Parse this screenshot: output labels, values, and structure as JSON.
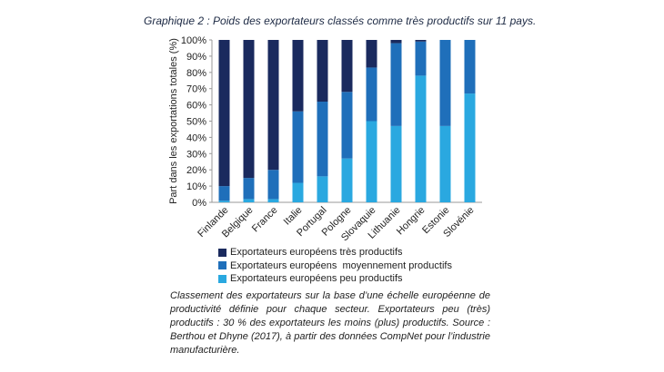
{
  "title": "Graphique 2 : Poids des exportateurs classés comme très productifs sur 11 pays.",
  "caption": "Classement des exportateurs sur la base d’une échelle européenne de productivité définie pour chaque secteur. Exportateurs peu (très) productifs : 30 % des exportateurs les moins (plus) productifs. Source : Berthou et Dhyne (2017), à partir des données CompNet pour l’industrie manufacturière.",
  "colors": {
    "tres": "#1a2a5e",
    "moyen": "#1f6fba",
    "peu": "#2aa8e0"
  },
  "chart_data": {
    "type": "bar",
    "stacked": true,
    "ylabel": "Part dans les exportations totales (%)",
    "xlabel": "",
    "ylim": [
      0,
      100
    ],
    "yticks": [
      "0%",
      "10%",
      "20%",
      "30%",
      "40%",
      "50%",
      "60%",
      "70%",
      "80%",
      "90%",
      "100%"
    ],
    "categories": [
      "Finlande",
      "Belgique",
      "France",
      "Italie",
      "Portugal",
      "Pologne",
      "Slovaquie",
      "Lithuanie",
      "Hongrie",
      "Estonie",
      "Slovénie"
    ],
    "series": [
      {
        "name": "Exportateurs européens peu productifs",
        "color": "#2aa8e0",
        "values": [
          1,
          2,
          2,
          12,
          16,
          27,
          50,
          47,
          78,
          47,
          67
        ]
      },
      {
        "name": "Exportateurs européens  moyennement productifs",
        "color": "#1f6fba",
        "values": [
          9,
          13,
          18,
          44,
          46,
          41,
          33,
          51,
          21,
          53,
          33
        ]
      },
      {
        "name": "Exportateurs européens très productifs",
        "color": "#1a2a5e",
        "values": [
          90,
          85,
          80,
          44,
          38,
          32,
          17,
          2,
          1,
          0,
          0
        ]
      }
    ],
    "legend": {
      "position": "bottom",
      "items": [
        {
          "label": "Exportateurs européens très productifs",
          "color": "#1a2a5e"
        },
        {
          "label": "Exportateurs européens  moyennement productifs",
          "color": "#1f6fba"
        },
        {
          "label": "Exportateurs européens peu productifs",
          "color": "#2aa8e0"
        }
      ]
    },
    "grid": false
  }
}
